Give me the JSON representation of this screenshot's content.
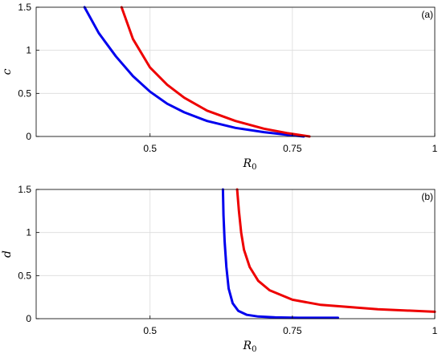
{
  "chart_data": [
    {
      "type": "line",
      "panel_label": "(a)",
      "xlabel_main": "R",
      "xlabel_sub": "0",
      "ylabel": "c",
      "xlim": [
        0.3,
        1.0
      ],
      "ylim": [
        0,
        1.5
      ],
      "xticks": [
        0.5,
        0.75,
        1
      ],
      "xtick_labels": [
        "0.5",
        "0.75",
        "1"
      ],
      "yticks": [
        0,
        0.5,
        1,
        1.5
      ],
      "ytick_labels": [
        "0",
        "0.5",
        "1",
        "1.5"
      ],
      "grid": true,
      "series": [
        {
          "color": "#0000ee",
          "x": [
            0.385,
            0.41,
            0.44,
            0.47,
            0.5,
            0.53,
            0.56,
            0.6,
            0.65,
            0.7,
            0.74,
            0.77
          ],
          "y": [
            1.5,
            1.2,
            0.93,
            0.7,
            0.52,
            0.38,
            0.28,
            0.18,
            0.1,
            0.05,
            0.02,
            0.0
          ]
        },
        {
          "color": "#ee0000",
          "x": [
            0.45,
            0.47,
            0.5,
            0.53,
            0.56,
            0.6,
            0.65,
            0.7,
            0.74,
            0.78
          ],
          "y": [
            1.5,
            1.13,
            0.8,
            0.6,
            0.45,
            0.3,
            0.18,
            0.09,
            0.04,
            0.0
          ]
        }
      ]
    },
    {
      "type": "line",
      "panel_label": "(b)",
      "xlabel_main": "R",
      "xlabel_sub": "0",
      "ylabel": "d",
      "xlim": [
        0.3,
        1.0
      ],
      "ylim": [
        0,
        1.5
      ],
      "xticks": [
        0.5,
        0.75,
        1
      ],
      "xtick_labels": [
        "0.5",
        "0.75",
        "1"
      ],
      "yticks": [
        0,
        0.5,
        1,
        1.5
      ],
      "ytick_labels": [
        "0",
        "0.5",
        "1",
        "1.5"
      ],
      "grid": true,
      "series": [
        {
          "color": "#0000ee",
          "x": [
            0.628,
            0.629,
            0.631,
            0.634,
            0.638,
            0.645,
            0.655,
            0.67,
            0.69,
            0.72,
            0.76,
            0.83
          ],
          "y": [
            1.5,
            1.2,
            0.9,
            0.6,
            0.35,
            0.18,
            0.09,
            0.045,
            0.025,
            0.015,
            0.01,
            0.01
          ]
        },
        {
          "color": "#ee0000",
          "x": [
            0.653,
            0.656,
            0.66,
            0.665,
            0.675,
            0.69,
            0.71,
            0.75,
            0.8,
            0.9,
            1.0
          ],
          "y": [
            1.5,
            1.25,
            1.0,
            0.8,
            0.6,
            0.44,
            0.33,
            0.22,
            0.16,
            0.11,
            0.08
          ]
        }
      ]
    }
  ]
}
